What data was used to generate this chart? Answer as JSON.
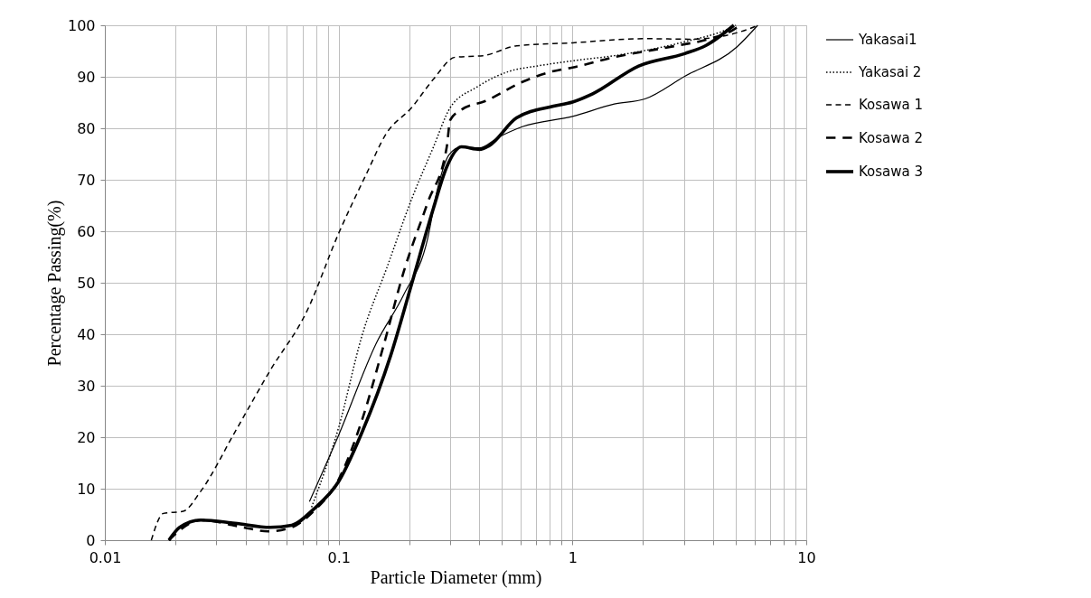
{
  "chart_data": {
    "type": "line",
    "xlabel": "Particle Diameter (mm)",
    "ylabel": "Percentage Passing(%)",
    "log": "x",
    "grid": true,
    "legend": "right",
    "marker": "none",
    "xlim": [
      0.01,
      10
    ],
    "ylim": [
      0,
      100
    ],
    "xticks": [
      0.01,
      {
        "value": 0.02,
        "label": null
      },
      {
        "value": 0.03,
        "label": null
      },
      {
        "value": 0.04,
        "label": null
      },
      {
        "value": 0.05,
        "label": null
      },
      {
        "value": 0.06,
        "label": null
      },
      {
        "value": 0.07,
        "label": null
      },
      {
        "value": 0.08,
        "label": null
      },
      {
        "value": 0.09,
        "label": null
      },
      0.1,
      {
        "value": 0.2,
        "label": null
      },
      {
        "value": 0.3,
        "label": null
      },
      {
        "value": 0.4,
        "label": null
      },
      {
        "value": 0.5,
        "label": null
      },
      {
        "value": 0.6,
        "label": null
      },
      {
        "value": 0.7,
        "label": null
      },
      {
        "value": 0.8,
        "label": null
      },
      {
        "value": 0.9,
        "label": null
      },
      1,
      {
        "value": 2,
        "label": null
      },
      {
        "value": 3,
        "label": null
      },
      {
        "value": 4,
        "label": null
      },
      {
        "value": 5,
        "label": null
      },
      {
        "value": 6,
        "label": null
      },
      {
        "value": 7,
        "label": null
      },
      {
        "value": 8,
        "label": null
      },
      {
        "value": 9,
        "label": null
      },
      10
    ],
    "yticks": [
      0,
      10,
      20,
      30,
      40,
      50,
      60,
      70,
      80,
      90,
      100
    ],
    "series": [
      {
        "name": "Yakasai1",
        "color": "#000000",
        "line_style": "solid",
        "x": [
          0.075,
          0.1,
          0.145,
          0.19,
          0.24,
          0.264,
          0.297,
          0.335,
          0.4,
          0.48,
          0.61,
          1,
          1.51,
          2.04,
          3.02,
          5.05,
          6.2
        ],
        "values": [
          7.5,
          20.4,
          38.3,
          47.7,
          58.5,
          68,
          74.9,
          76.4,
          76.2,
          78.2,
          80.3,
          82.3,
          84.7,
          85.7,
          90.1,
          95.8,
          100
        ]
      },
      {
        "name": "Yakasai 2",
        "color": "#000000",
        "line_style": "dotted",
        "x": [
          0.0766,
          0.1,
          0.126,
          0.161,
          0.205,
          0.254,
          0.3,
          0.39,
          0.54,
          0.71,
          1,
          1.51,
          2.04,
          3.02,
          4.75,
          5.0
        ],
        "values": [
          6.4,
          21.9,
          39.8,
          53,
          66.2,
          76.3,
          84,
          88,
          91.1,
          92.1,
          93.1,
          94.1,
          95.1,
          96.8,
          99.5,
          100
        ]
      },
      {
        "name": "Kosawa 1",
        "color": "#000000",
        "line_style": "dashed",
        "x": [
          0.0158,
          0.0178,
          0.0216,
          0.0257,
          0.036,
          0.051,
          0.073,
          0.1,
          0.131,
          0.16,
          0.205,
          0.254,
          0.315,
          0.414,
          0.576,
          1,
          2.04,
          3.2,
          5.7,
          6.2
        ],
        "values": [
          0,
          5.2,
          5.6,
          9.5,
          21,
          33,
          44.4,
          59.6,
          71,
          79,
          84,
          89.5,
          93.8,
          94.1,
          96,
          96.6,
          97.4,
          97.3,
          99.3,
          100
        ]
      },
      {
        "name": "Kosawa 2",
        "color": "#000000",
        "line_style": "dashed",
        "x": [
          0.0188,
          0.0257,
          0.039,
          0.05,
          0.063,
          0.078,
          0.1,
          0.126,
          0.155,
          0.19,
          0.24,
          0.29,
          0.3,
          0.335,
          0.425,
          0.61,
          0.83,
          1,
          1.51,
          2.76,
          3.73,
          4.9,
          5.2
        ],
        "values": [
          0,
          3.9,
          2.5,
          1.7,
          2.5,
          5.6,
          11.8,
          23.4,
          37.5,
          52.2,
          65.5,
          76.4,
          81.6,
          83.6,
          85.3,
          89,
          91.1,
          91.8,
          93.8,
          96,
          97.2,
          99.2,
          100
        ]
      },
      {
        "name": "Kosawa 3",
        "color": "#000000",
        "line_style": "solid",
        "x": [
          0.0188,
          0.0209,
          0.0257,
          0.036,
          0.051,
          0.063,
          0.078,
          0.1,
          0.126,
          0.167,
          0.205,
          0.254,
          0.29,
          0.335,
          0.4,
          0.44,
          0.576,
          0.83,
          1,
          1.22,
          1.92,
          3.02,
          3.73,
          4.9
        ],
        "values": [
          0,
          2.5,
          3.9,
          3.3,
          2.5,
          2.9,
          6,
          11.4,
          21,
          35.9,
          49.7,
          64.4,
          72.5,
          76.4,
          75.9,
          76.6,
          82,
          84.3,
          85.1,
          86.7,
          92.1,
          94.5,
          96.1,
          100
        ]
      }
    ]
  }
}
